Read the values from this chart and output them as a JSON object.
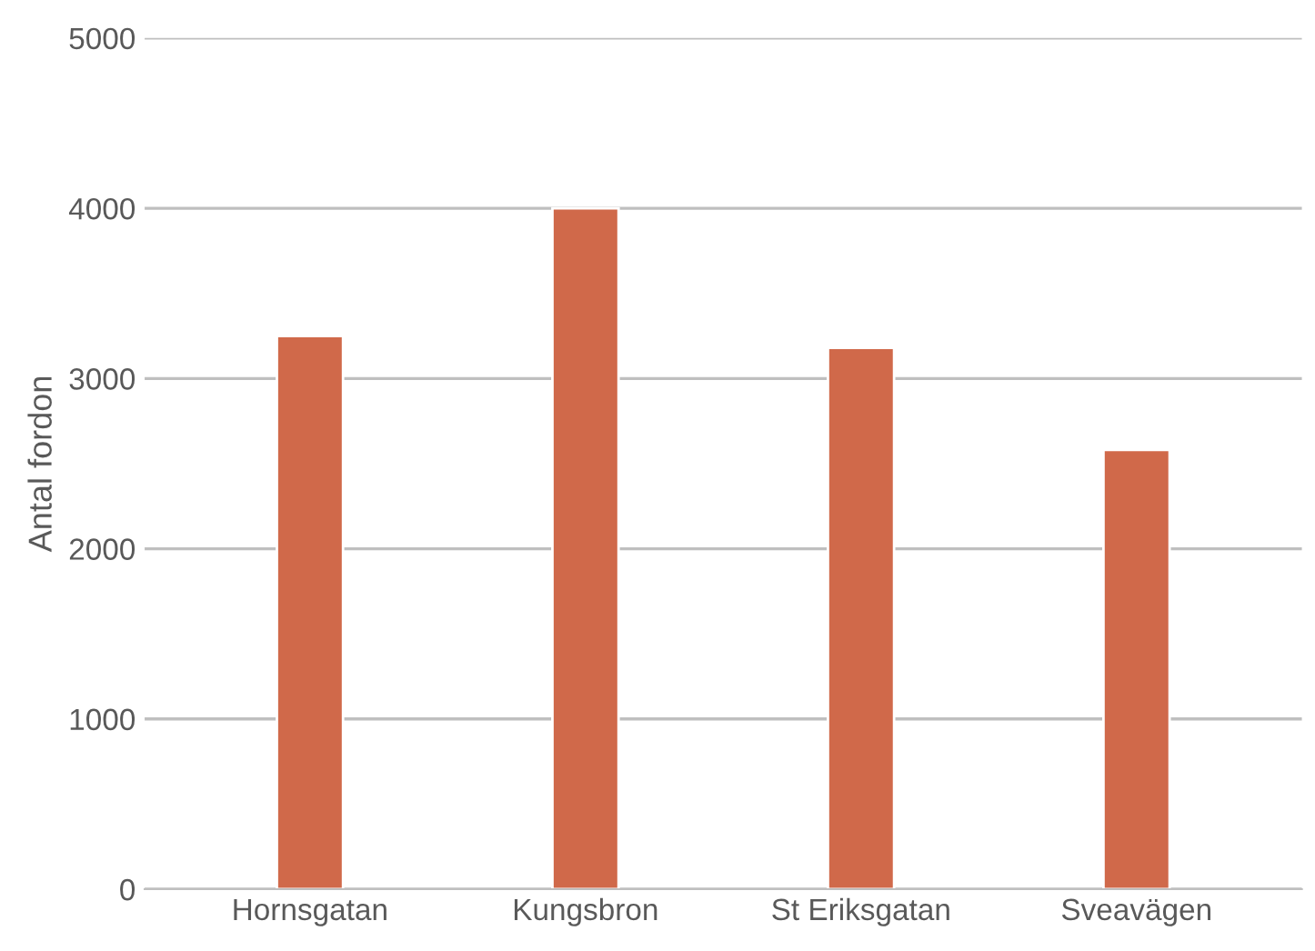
{
  "chart_data": {
    "type": "bar",
    "ylabel": "Antal fordon",
    "categories": [
      "Hornsgatan",
      "Kungsbron",
      "St Eriksgatan",
      "Sveavägen"
    ],
    "values": [
      3250,
      4000,
      3180,
      2580
    ],
    "color": "#d0694a",
    "ylim": [
      0,
      5000
    ],
    "yticks": [
      0,
      1000,
      2000,
      3000,
      4000,
      5000
    ],
    "grid": "y"
  }
}
